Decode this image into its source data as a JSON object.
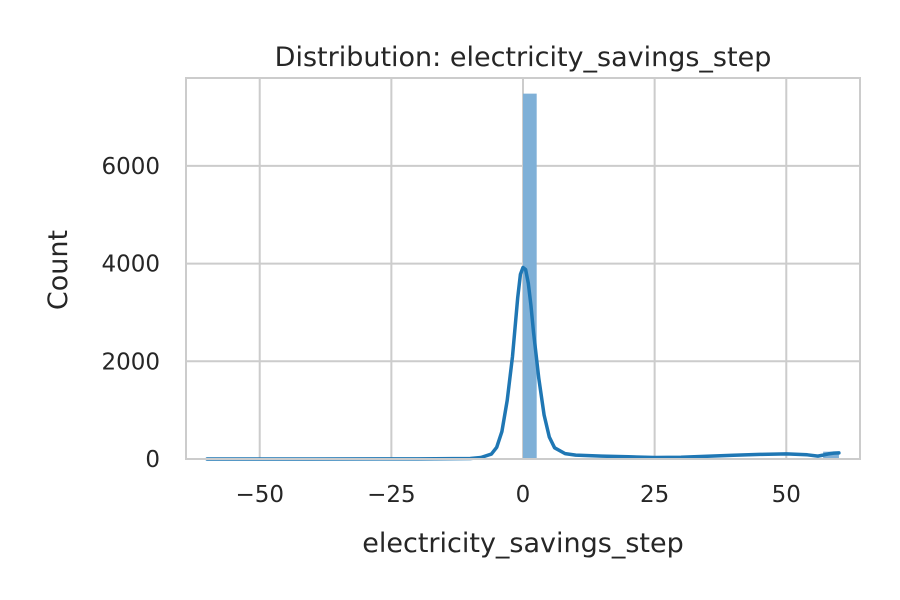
{
  "chart_data": {
    "type": "bar",
    "title": "Distribution: electricity_savings_step",
    "xlabel": "electricity_savings_step",
    "ylabel": "Count",
    "xlim": [
      -64,
      64
    ],
    "ylim": [
      0,
      7800
    ],
    "x_ticks": [
      -50,
      -25,
      0,
      25,
      50
    ],
    "x_tick_labels": [
      "−50",
      "−25",
      "0",
      "25",
      "50"
    ],
    "y_ticks": [
      0,
      2000,
      4000,
      6000
    ],
    "y_tick_labels": [
      "0",
      "2000",
      "4000",
      "6000"
    ],
    "grid": true,
    "bins": [
      {
        "x0": 0.0,
        "x1": 2.6,
        "count": 7480
      },
      {
        "x0": 57.0,
        "x1": 60.0,
        "count": 150
      }
    ],
    "kde": {
      "x": [
        -60,
        -40,
        -20,
        -10,
        -8,
        -6,
        -5,
        -4,
        -3,
        -2,
        -1.5,
        -1,
        -0.5,
        0,
        0.5,
        1,
        1.5,
        2,
        3,
        4,
        5,
        6,
        8,
        10,
        15,
        20,
        25,
        30,
        35,
        40,
        45,
        50,
        54,
        56,
        57,
        58,
        59,
        60
      ],
      "y": [
        0,
        0,
        2,
        10,
        30,
        100,
        240,
        560,
        1200,
        2100,
        2700,
        3300,
        3780,
        3920,
        3880,
        3600,
        3150,
        2600,
        1650,
        900,
        450,
        230,
        110,
        80,
        60,
        45,
        30,
        35,
        55,
        75,
        95,
        105,
        85,
        60,
        80,
        105,
        120,
        125
      ]
    },
    "colors": {
      "bar": "#7fb0d7",
      "line": "#1f77b4",
      "grid": "#cccccc",
      "frame": "#cccccc"
    }
  }
}
